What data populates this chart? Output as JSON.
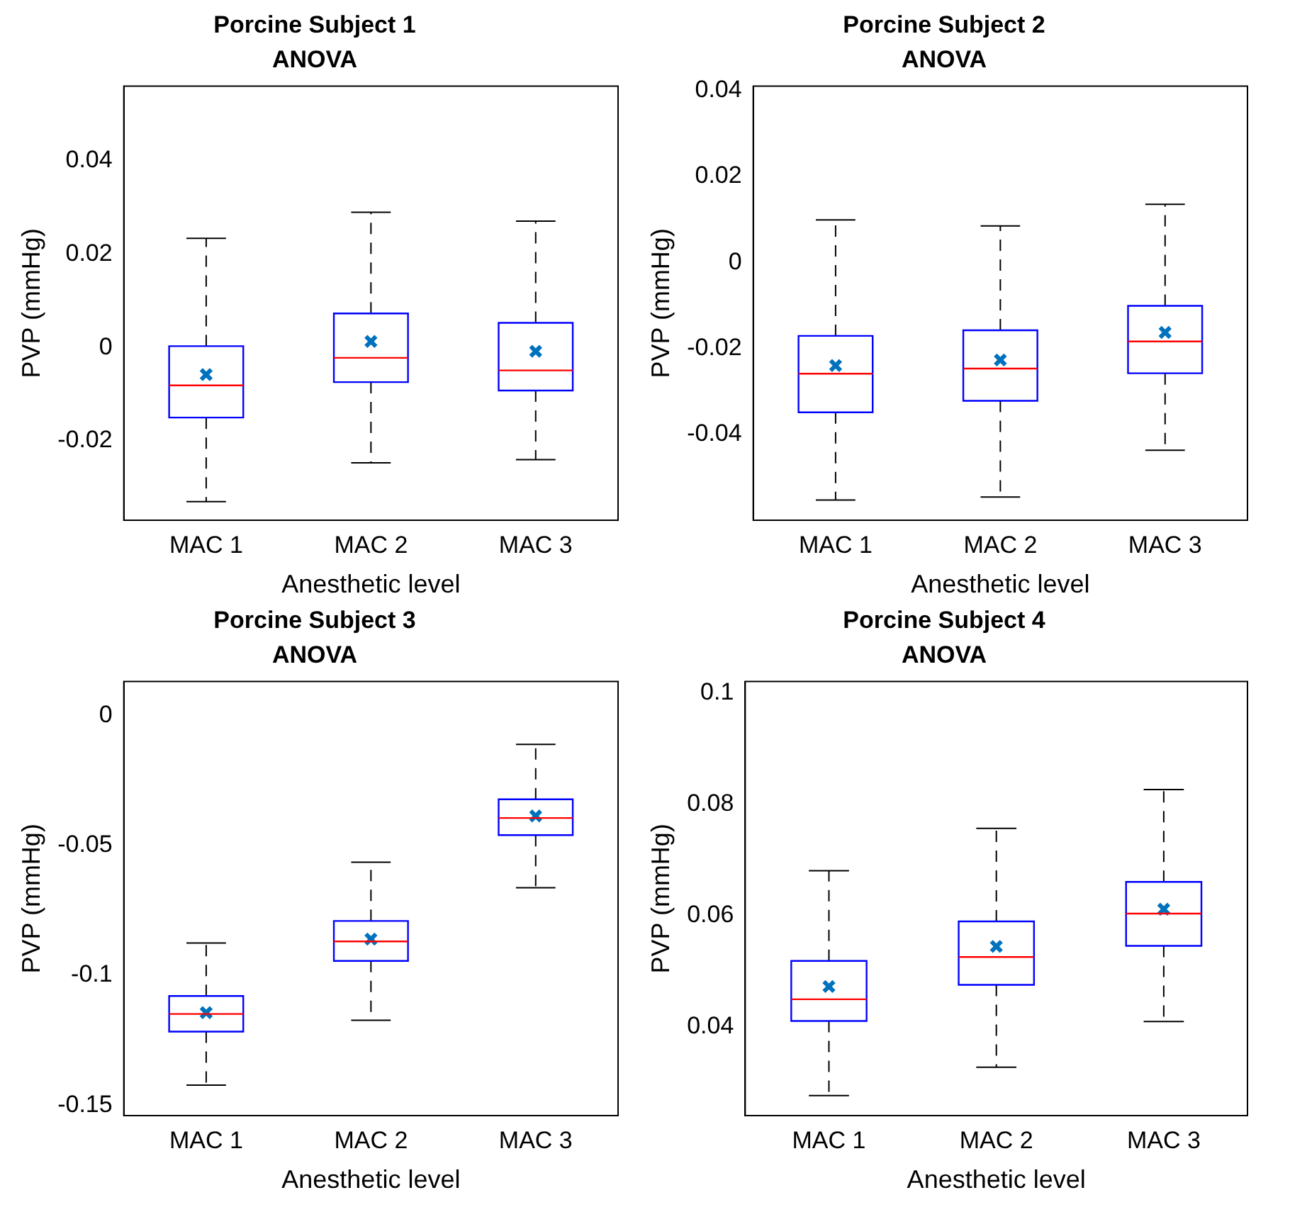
{
  "chart_data": [
    {
      "type": "box",
      "title": "Porcine Subject 1",
      "subtitle": "ANOVA",
      "xlabel": "Anesthetic level",
      "ylabel": "PVP (mmHg)",
      "categories": [
        "MAC 1",
        "MAC 2",
        "MAC 3"
      ],
      "ylim": [
        -0.037,
        0.056
      ],
      "yticks": [
        -0.02,
        0,
        0.02,
        0.04
      ],
      "grid": false,
      "legend": false,
      "marker": "cross",
      "series": [
        {
          "color": "#0000ff",
          "boxes": [
            {
              "low": -0.033,
              "q1": -0.015,
              "median": -0.0081,
              "q3": 0.0003,
              "high": 0.0234,
              "mean": -0.0058
            },
            {
              "low": -0.0247,
              "q1": -0.0074,
              "median": -0.0022,
              "q3": 0.0073,
              "high": 0.029,
              "mean": 0.0013
            },
            {
              "low": -0.024,
              "q1": -0.0092,
              "median": -0.0049,
              "q3": 0.0053,
              "high": 0.0271,
              "mean": -0.0008
            }
          ]
        }
      ]
    },
    {
      "type": "box",
      "title": "Porcine Subject 2",
      "subtitle": "ANOVA",
      "xlabel": "Anesthetic level",
      "ylabel": "PVP (mmHg)",
      "categories": [
        "MAC 1",
        "MAC 2",
        "MAC 3"
      ],
      "ylim": [
        -0.06,
        0.041
      ],
      "yticks": [
        -0.04,
        -0.02,
        0,
        0.02,
        0.04
      ],
      "grid": false,
      "legend": false,
      "marker": "cross",
      "series": [
        {
          "color": "#0000ff",
          "boxes": [
            {
              "low": -0.0553,
              "q1": -0.0349,
              "median": -0.0259,
              "q3": -0.0171,
              "high": 0.0099,
              "mean": -0.024
            },
            {
              "low": -0.0546,
              "q1": -0.0322,
              "median": -0.0247,
              "q3": -0.0158,
              "high": 0.0085,
              "mean": -0.0227
            },
            {
              "low": -0.0437,
              "q1": -0.0258,
              "median": -0.0184,
              "q3": -0.0101,
              "high": 0.0135,
              "mean": -0.0163
            }
          ]
        }
      ]
    },
    {
      "type": "box",
      "title": "Porcine Subject 3",
      "subtitle": "ANOVA",
      "xlabel": "Anesthetic level",
      "ylabel": "PVP (mmHg)",
      "categories": [
        "MAC 1",
        "MAC 2",
        "MAC 3"
      ],
      "ylim": [
        -0.154,
        0.013
      ],
      "yticks": [
        -0.15,
        -0.1,
        -0.05,
        0
      ],
      "grid": false,
      "legend": false,
      "marker": "cross",
      "series": [
        {
          "color": "#0000ff",
          "boxes": [
            {
              "low": -0.1423,
              "q1": -0.1217,
              "median": -0.1149,
              "q3": -0.108,
              "high": -0.0876,
              "mean": -0.1144
            },
            {
              "low": -0.1173,
              "q1": -0.0945,
              "median": -0.087,
              "q3": -0.0791,
              "high": -0.0565,
              "mean": -0.0861
            },
            {
              "low": -0.0663,
              "q1": -0.0461,
              "median": -0.0395,
              "q3": -0.0323,
              "high": -0.0112,
              "mean": -0.0387
            }
          ]
        }
      ]
    },
    {
      "type": "box",
      "title": "Porcine Subject 4",
      "subtitle": "ANOVA",
      "xlabel": "Anesthetic level",
      "ylabel": "PVP (mmHg)",
      "categories": [
        "MAC 1",
        "MAC 2",
        "MAC 3"
      ],
      "ylim": [
        0.024,
        0.102
      ],
      "yticks": [
        0.04,
        0.06,
        0.08,
        0.1
      ],
      "grid": false,
      "legend": false,
      "marker": "cross",
      "series": [
        {
          "color": "#0000ff",
          "boxes": [
            {
              "low": 0.0276,
              "q1": 0.041,
              "median": 0.0449,
              "q3": 0.0518,
              "high": 0.068,
              "mean": 0.0472
            },
            {
              "low": 0.0327,
              "q1": 0.0475,
              "median": 0.0525,
              "q3": 0.0589,
              "high": 0.0756,
              "mean": 0.0544
            },
            {
              "low": 0.0409,
              "q1": 0.0545,
              "median": 0.0603,
              "q3": 0.066,
              "high": 0.0826,
              "mean": 0.0611
            }
          ]
        }
      ]
    }
  ]
}
